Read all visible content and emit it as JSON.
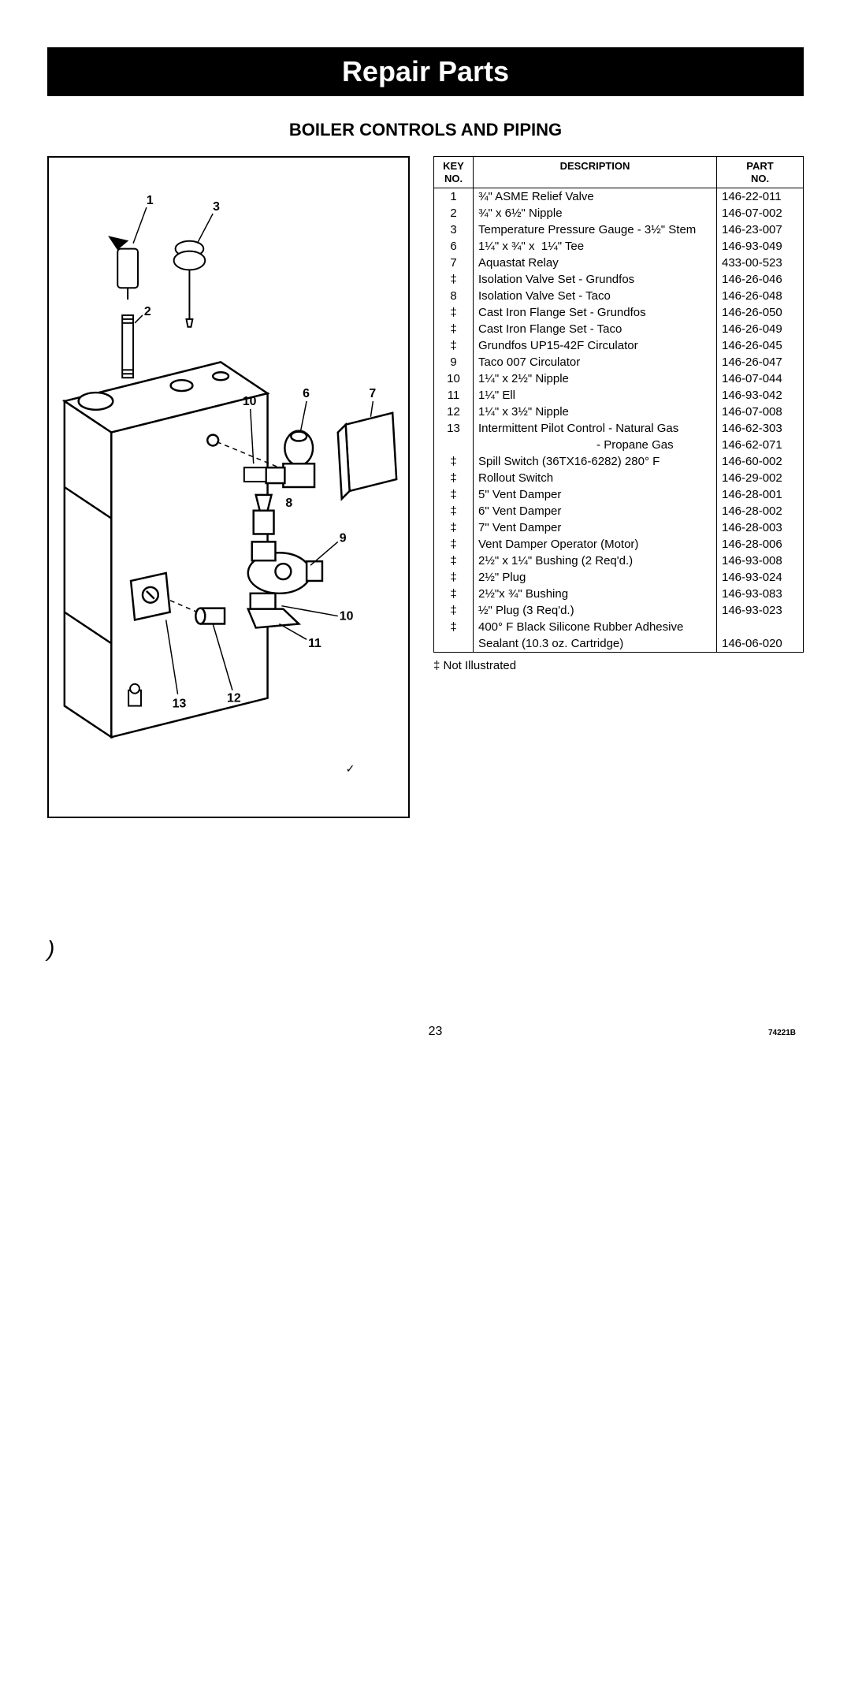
{
  "title_bar": "Repair Parts",
  "section_title": "BOILER CONTROLS AND PIPING",
  "table": {
    "headers": {
      "key": "KEY\nNO.",
      "desc": "DESCRIPTION",
      "part": "PART\nNO."
    },
    "rows": [
      {
        "key": "1",
        "desc": "¾\" ASME Relief Valve",
        "part": "146-22-011"
      },
      {
        "key": "2",
        "desc": "¾\" x 6½\" Nipple",
        "part": "146-07-002"
      },
      {
        "key": "3",
        "desc": "Temperature Pressure Gauge - 3½\" Stem",
        "part": "146-23-007"
      },
      {
        "key": "6",
        "desc": "1¼\" x ¾\" x  1¼\" Tee",
        "part": "146-93-049"
      },
      {
        "key": "7",
        "desc": "Aquastat Relay",
        "part": "433-00-523"
      },
      {
        "key": "‡",
        "desc": "Isolation Valve Set - Grundfos",
        "part": "146-26-046"
      },
      {
        "key": "8",
        "desc": "Isolation Valve Set - Taco",
        "part": "146-26-048"
      },
      {
        "key": "‡",
        "desc": "Cast Iron Flange Set - Grundfos",
        "part": "146-26-050"
      },
      {
        "key": "‡",
        "desc": "Cast Iron Flange Set - Taco",
        "part": "146-26-049"
      },
      {
        "key": "‡",
        "desc": "Grundfos UP15-42F Circulator",
        "part": "146-26-045"
      },
      {
        "key": "9",
        "desc": "Taco 007 Circulator",
        "part": "146-26-047"
      },
      {
        "key": "10",
        "desc": "1¼\" x 2½\" Nipple",
        "part": "146-07-044"
      },
      {
        "key": "11",
        "desc": "1¼\" Ell",
        "part": "146-93-042"
      },
      {
        "key": "12",
        "desc": "1¼\" x 3½\" Nipple",
        "part": "146-07-008"
      },
      {
        "key": "13",
        "desc": "Intermittent Pilot Control - Natural Gas",
        "part": "146-62-303"
      },
      {
        "key": "",
        "desc": "                                    - Propane Gas",
        "part": "146-62-071"
      },
      {
        "key": "‡",
        "desc": "Spill Switch (36TX16-6282) 280° F",
        "part": "146-60-002"
      },
      {
        "key": "‡",
        "desc": "Rollout Switch",
        "part": "146-29-002"
      },
      {
        "key": "‡",
        "desc": "5\" Vent Damper",
        "part": "146-28-001"
      },
      {
        "key": "‡",
        "desc": "6\" Vent Damper",
        "part": "146-28-002"
      },
      {
        "key": "‡",
        "desc": "7\" Vent Damper",
        "part": "146-28-003"
      },
      {
        "key": "‡",
        "desc": "Vent Damper Operator (Motor)",
        "part": "146-28-006"
      },
      {
        "key": "‡",
        "desc": "2½\" x 1¼\" Bushing (2 Req'd.)",
        "part": "146-93-008"
      },
      {
        "key": "‡",
        "desc": "2½\" Plug",
        "part": "146-93-024"
      },
      {
        "key": "‡",
        "desc": "2½\"x ¾\" Bushing",
        "part": "146-93-083"
      },
      {
        "key": "‡",
        "desc": "½\" Plug (3 Req'd.)",
        "part": "146-93-023"
      },
      {
        "key": "‡",
        "desc": "400° F Black Silicone Rubber Adhesive",
        "part": ""
      },
      {
        "key": "",
        "desc": "Sealant (10.3 oz. Cartridge)",
        "part": "146-06-020"
      }
    ]
  },
  "footnote": "‡ Not Illustrated",
  "page_number": "23",
  "doc_id": "74221B",
  "callouts": {
    "c1": "1",
    "c2": "2",
    "c3": "3",
    "c6": "6",
    "c7": "7",
    "c8": "8",
    "c9": "9",
    "c10a": "10",
    "c10b": "10",
    "c11": "11",
    "c12": "12",
    "c13": "13"
  }
}
